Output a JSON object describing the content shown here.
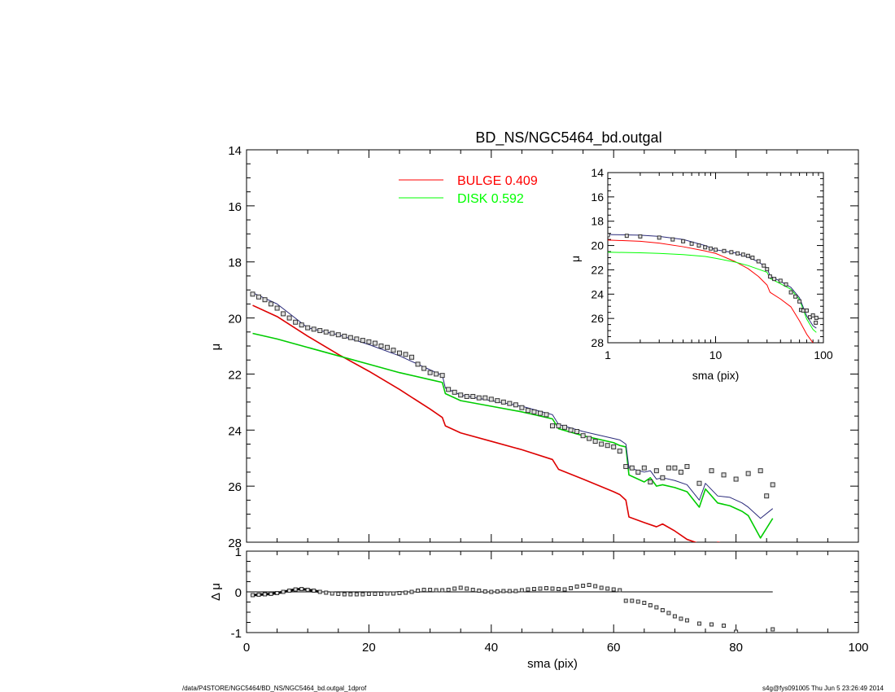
{
  "chart_data": [
    {
      "type": "line",
      "title": "BD_NS/NGC5464_bd.outgal",
      "ylabel": "μ",
      "xlim": [
        0,
        100
      ],
      "ylim": [
        28,
        14
      ],
      "yticks": [
        14,
        16,
        18,
        20,
        22,
        24,
        26,
        28
      ],
      "legend": [
        {
          "label": "BULGE",
          "value": "0.409",
          "color": "#ff0000"
        },
        {
          "label": "DISK",
          "value": "0.592",
          "color": "#00ff00"
        }
      ],
      "series": [
        {
          "name": "BULGE",
          "color": "#dd0000",
          "x": [
            1,
            5,
            10,
            15,
            20,
            25,
            30,
            32,
            32.5,
            35,
            40,
            45,
            50,
            51,
            55,
            60,
            61,
            62,
            62.5,
            65,
            67,
            68,
            70,
            72,
            74,
            75,
            76,
            77,
            78,
            79
          ],
          "y": [
            19.55,
            19.95,
            20.65,
            21.3,
            21.9,
            22.55,
            23.25,
            23.55,
            23.85,
            24.1,
            24.4,
            24.7,
            25.05,
            25.4,
            25.75,
            26.2,
            26.3,
            26.5,
            27.1,
            27.3,
            27.45,
            27.35,
            27.6,
            27.9,
            28.05,
            28.3,
            28.25,
            28.0,
            28.05,
            28.2
          ]
        },
        {
          "name": "DISK",
          "color": "#00cc00",
          "x": [
            1,
            5,
            10,
            15,
            20,
            25,
            30,
            32,
            32.5,
            35,
            40,
            45,
            50,
            51,
            55,
            60,
            61,
            62,
            62.5,
            65,
            66,
            67,
            68,
            70,
            72,
            74,
            75,
            77,
            79,
            81,
            82,
            84,
            86
          ],
          "y": [
            20.55,
            20.75,
            21.05,
            21.35,
            21.65,
            21.95,
            22.2,
            22.3,
            22.7,
            22.95,
            23.15,
            23.35,
            23.6,
            23.95,
            24.2,
            24.45,
            24.55,
            24.6,
            25.6,
            25.85,
            25.7,
            26.0,
            25.95,
            26.05,
            26.2,
            26.75,
            26.1,
            26.6,
            26.7,
            26.9,
            27.05,
            27.85,
            27.15
          ]
        },
        {
          "name": "",
          "color": "#2a2a7a",
          "x": [
            1,
            5,
            10,
            15,
            20,
            25,
            30,
            32,
            32.5,
            35,
            40,
            45,
            50,
            51,
            55,
            60,
            61,
            62,
            62.5,
            65,
            66,
            67,
            68,
            70,
            72,
            74,
            75,
            77,
            79,
            81,
            82,
            84,
            86
          ],
          "y": [
            19.1,
            19.5,
            20.35,
            20.6,
            20.95,
            21.35,
            21.85,
            22.05,
            22.5,
            22.75,
            22.95,
            23.15,
            23.45,
            23.8,
            24.05,
            24.3,
            24.35,
            24.5,
            25.35,
            25.5,
            25.45,
            25.75,
            25.7,
            25.8,
            25.95,
            26.5,
            25.9,
            26.35,
            26.4,
            26.6,
            26.75,
            27.15,
            26.8
          ]
        }
      ],
      "points": {
        "x": [
          1,
          2,
          3,
          4,
          5,
          6,
          7,
          8,
          9,
          10,
          11,
          12,
          13,
          14,
          15,
          16,
          17,
          18,
          19,
          20,
          21,
          22,
          23,
          24,
          25,
          26,
          27,
          28,
          29,
          30,
          31,
          32,
          33,
          34,
          35,
          36,
          37,
          38,
          39,
          40,
          41,
          42,
          43,
          44,
          45,
          46,
          47,
          48,
          49,
          50,
          51,
          52,
          53,
          54,
          55,
          56,
          57,
          58,
          59,
          60,
          61,
          62,
          63,
          64,
          65,
          66,
          67,
          68,
          69,
          70,
          71,
          72,
          74,
          76,
          78,
          80,
          82,
          84,
          85,
          86
        ],
        "y": [
          19.15,
          19.25,
          19.35,
          19.5,
          19.65,
          19.85,
          20.0,
          20.15,
          20.25,
          20.35,
          20.4,
          20.45,
          20.5,
          20.55,
          20.6,
          20.65,
          20.7,
          20.75,
          20.8,
          20.85,
          20.9,
          21.0,
          21.05,
          21.15,
          21.25,
          21.3,
          21.4,
          21.65,
          21.8,
          21.95,
          22.0,
          22.05,
          22.55,
          22.65,
          22.75,
          22.8,
          22.8,
          22.85,
          22.85,
          22.9,
          22.95,
          23.0,
          23.05,
          23.1,
          23.2,
          23.3,
          23.35,
          23.4,
          23.45,
          23.85,
          23.85,
          23.9,
          24.0,
          24.05,
          24.2,
          24.3,
          24.4,
          24.5,
          24.55,
          24.6,
          24.75,
          25.3,
          25.35,
          25.5,
          25.35,
          25.85,
          25.45,
          25.7,
          25.35,
          25.35,
          25.5,
          25.3,
          25.9,
          25.45,
          25.6,
          25.75,
          25.55,
          25.45,
          26.35,
          25.95
        ]
      }
    },
    {
      "type": "line",
      "title": "",
      "xlabel": "sma (pix)",
      "ylabel": "μ",
      "xscale": "log",
      "xlim": [
        1,
        100
      ],
      "ylim": [
        28,
        14
      ],
      "xticks": [
        "1",
        "10",
        "100"
      ],
      "yticks": [
        14,
        16,
        18,
        20,
        22,
        24,
        26,
        28
      ],
      "series": [
        {
          "name": "BULGE",
          "color": "#ff0000",
          "x": [
            1,
            2,
            3,
            5,
            8,
            10,
            15,
            20,
            25,
            30,
            32,
            40,
            50,
            60,
            70,
            80,
            90
          ],
          "y": [
            19.55,
            19.65,
            19.8,
            20.1,
            20.45,
            20.65,
            21.3,
            21.9,
            22.55,
            23.25,
            23.85,
            24.4,
            25.05,
            26.2,
            27.3,
            28.0,
            28.3
          ]
        },
        {
          "name": "DISK",
          "color": "#00ff00",
          "x": [
            1,
            2,
            3,
            5,
            8,
            10,
            15,
            20,
            25,
            30,
            32,
            40,
            50,
            60,
            70,
            80,
            86
          ],
          "y": [
            20.55,
            20.6,
            20.65,
            20.75,
            20.9,
            21.05,
            21.35,
            21.65,
            21.95,
            22.2,
            22.7,
            23.15,
            23.6,
            24.45,
            26.05,
            26.9,
            27.15
          ]
        },
        {
          "name": "",
          "color": "#2a2a7a",
          "x": [
            1,
            2,
            3,
            5,
            8,
            10,
            15,
            20,
            25,
            30,
            32,
            40,
            50,
            60,
            70,
            80,
            86
          ],
          "y": [
            19.1,
            19.15,
            19.25,
            19.5,
            20.0,
            20.35,
            20.6,
            20.95,
            21.35,
            21.85,
            22.5,
            22.95,
            23.45,
            24.3,
            25.8,
            26.6,
            26.8
          ]
        }
      ],
      "points": {
        "x": [
          1,
          1.5,
          2,
          3,
          4,
          5,
          6,
          7,
          8,
          9,
          10,
          12,
          14,
          16,
          18,
          20,
          22,
          25,
          28,
          30,
          32,
          35,
          40,
          45,
          50,
          55,
          60,
          62,
          65,
          70,
          75,
          80,
          85,
          86
        ],
        "y": [
          19.15,
          19.2,
          19.25,
          19.35,
          19.5,
          19.65,
          19.85,
          20.0,
          20.15,
          20.25,
          20.35,
          20.45,
          20.55,
          20.65,
          20.75,
          20.85,
          21.0,
          21.3,
          21.65,
          21.95,
          22.55,
          22.75,
          22.9,
          23.2,
          23.85,
          24.2,
          24.6,
          25.3,
          25.35,
          25.35,
          25.9,
          25.75,
          26.35,
          25.95
        ]
      }
    },
    {
      "type": "scatter",
      "title": "",
      "xlabel": "sma (pix)",
      "ylabel": "Δ μ",
      "xlim": [
        0,
        100
      ],
      "ylim": [
        -1,
        1
      ],
      "xticks": [
        0,
        20,
        40,
        60,
        80,
        100
      ],
      "yticks": [
        -1,
        0,
        1
      ],
      "reference_line": {
        "y": 0,
        "x_from": 1,
        "x_to": 86
      },
      "points": {
        "x": [
          1,
          2,
          3,
          4,
          5,
          6,
          7,
          8,
          9,
          10,
          11,
          12,
          13,
          14,
          15,
          16,
          17,
          18,
          19,
          20,
          21,
          22,
          23,
          24,
          25,
          26,
          27,
          28,
          29,
          30,
          31,
          32,
          33,
          34,
          35,
          36,
          37,
          38,
          39,
          40,
          41,
          42,
          43,
          44,
          45,
          46,
          47,
          48,
          49,
          50,
          51,
          52,
          53,
          54,
          55,
          56,
          57,
          58,
          59,
          60,
          61,
          62,
          63,
          64,
          65,
          66,
          67,
          68,
          69,
          70,
          71,
          72,
          74,
          76,
          78,
          80,
          86
        ],
        "y": [
          -0.08,
          -0.07,
          -0.06,
          -0.05,
          -0.03,
          0.0,
          0.03,
          0.06,
          0.07,
          0.05,
          0.03,
          0.0,
          -0.02,
          -0.04,
          -0.05,
          -0.06,
          -0.06,
          -0.06,
          -0.06,
          -0.05,
          -0.05,
          -0.05,
          -0.04,
          -0.04,
          -0.03,
          -0.02,
          0.0,
          0.03,
          0.05,
          0.05,
          0.04,
          0.04,
          0.05,
          0.08,
          0.1,
          0.08,
          0.05,
          0.03,
          0.01,
          0.0,
          0.01,
          0.02,
          0.02,
          0.02,
          0.04,
          0.06,
          0.07,
          0.08,
          0.09,
          0.08,
          0.07,
          0.06,
          0.09,
          0.13,
          0.15,
          0.17,
          0.14,
          0.1,
          0.08,
          0.06,
          0.04,
          -0.22,
          -0.22,
          -0.24,
          -0.27,
          -0.33,
          -0.38,
          -0.45,
          -0.52,
          -0.6,
          -0.66,
          -0.7,
          -0.78,
          -0.8,
          -0.83,
          -0.98,
          -0.92
        ]
      }
    }
  ],
  "footer": {
    "left": "/data/P4STORE/NGC5464/BD_NS/NGC5464_bd.outgal_1dprof",
    "right": "s4g@fys091005  Thu Jun  5 23:26:49 2014"
  }
}
